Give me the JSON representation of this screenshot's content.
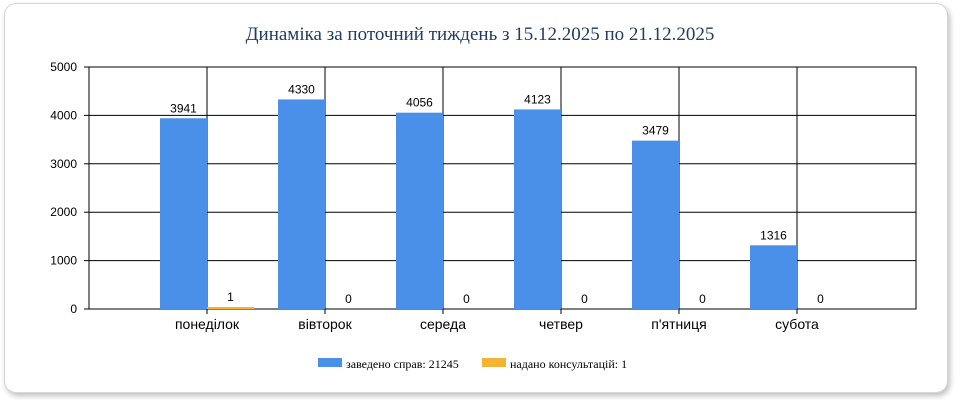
{
  "chart_data": {
    "type": "bar",
    "title": "Динаміка за поточний тиждень з 15.12.2025 по 21.12.2025",
    "categories": [
      "понеділок",
      "вівторок",
      "середа",
      "четвер",
      "п'ятниця",
      "субота"
    ],
    "series": [
      {
        "name": "заведено справ: 21245",
        "color": "#4a8fe8",
        "values": [
          3941,
          4330,
          4056,
          4123,
          3479,
          1316
        ]
      },
      {
        "name": "надано консультацій: 1",
        "color": "#f5b335",
        "values": [
          1,
          0,
          0,
          0,
          0,
          0
        ]
      }
    ],
    "yticks": [
      0,
      1000,
      2000,
      3000,
      4000,
      5000
    ],
    "ylim": [
      0,
      5000
    ],
    "grid": true,
    "legend": "bottom-center"
  }
}
